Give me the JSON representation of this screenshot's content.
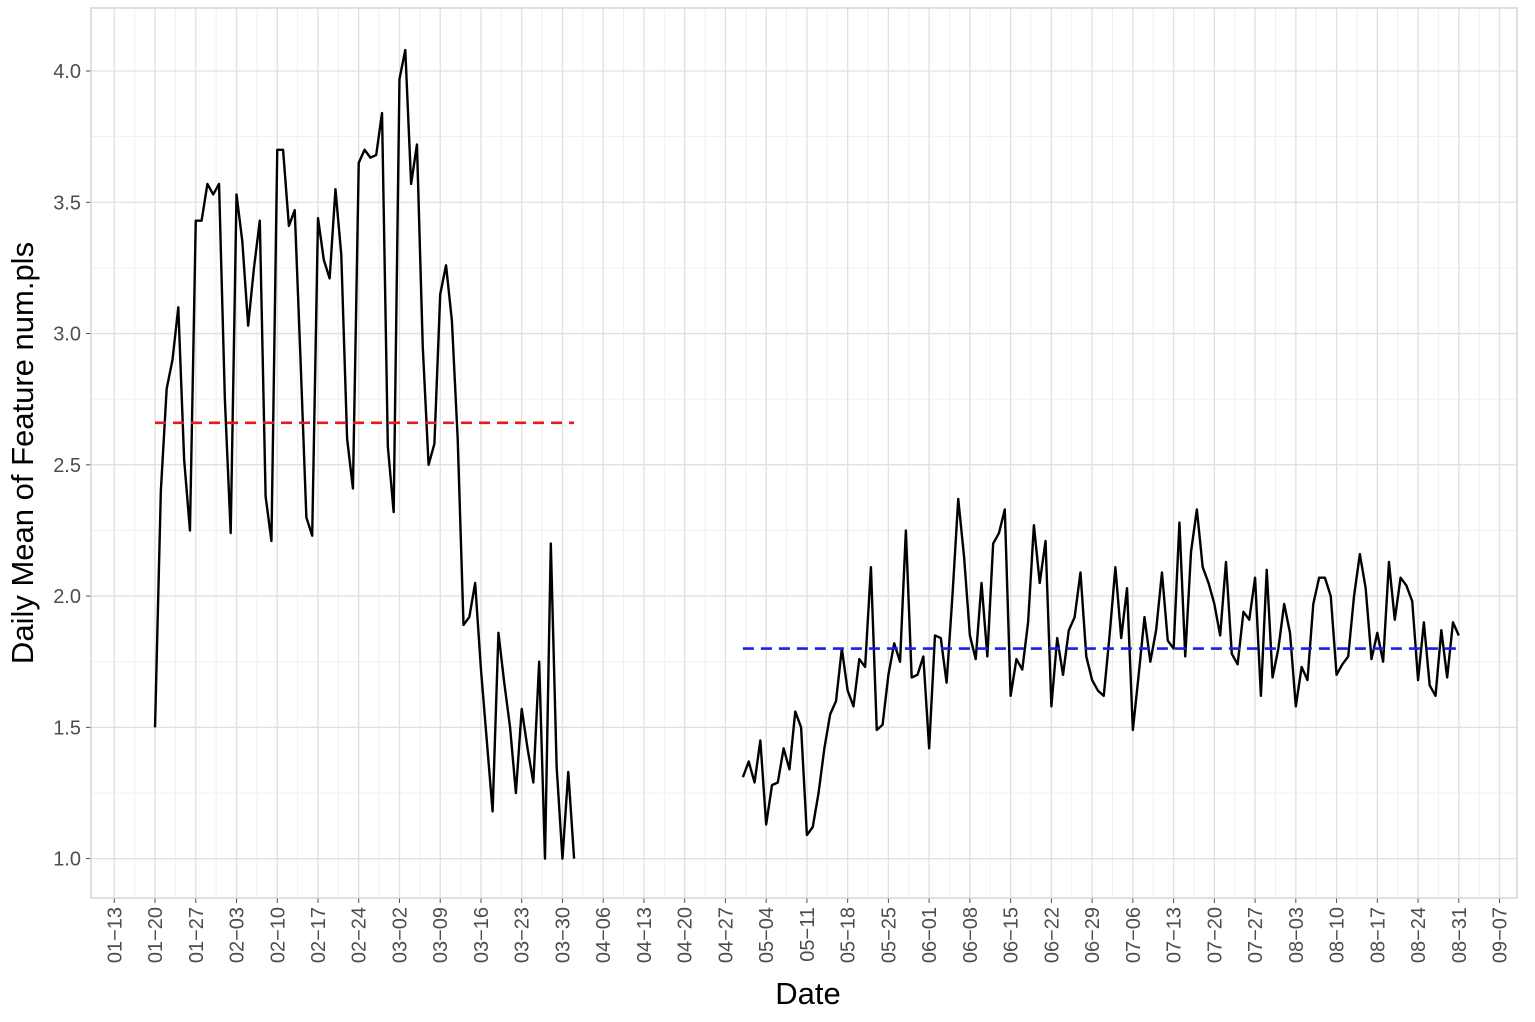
{
  "chart_data": {
    "type": "line",
    "xlabel": "Date",
    "ylabel": "Daily Mean of Feature num.pls",
    "xlim": [
      "01-09",
      "09-10"
    ],
    "ylim": [
      0.85,
      4.24
    ],
    "grid": true,
    "yticks": [
      {
        "value": 1,
        "label": "1.0"
      },
      1.5,
      {
        "value": 2,
        "label": "2.0"
      },
      2.5,
      {
        "value": 3,
        "label": "3.0"
      },
      3.5,
      {
        "value": 4,
        "label": "4.0"
      }
    ],
    "xticks": [
      {
        "value": "01-13",
        "label": "01−13"
      },
      {
        "value": "01-20",
        "label": "01−20"
      },
      {
        "value": "01-27",
        "label": "01−27"
      },
      {
        "value": "02-03",
        "label": "02−03"
      },
      {
        "value": "02-10",
        "label": "02−10"
      },
      {
        "value": "02-17",
        "label": "02−17"
      },
      {
        "value": "02-24",
        "label": "02−24"
      },
      {
        "value": "03-02",
        "label": "03−02"
      },
      {
        "value": "03-09",
        "label": "03−09"
      },
      {
        "value": "03-16",
        "label": "03−16"
      },
      {
        "value": "03-23",
        "label": "03−23"
      },
      {
        "value": "03-30",
        "label": "03−30"
      },
      {
        "value": "04-06",
        "label": "04−06"
      },
      {
        "value": "04-13",
        "label": "04−13"
      },
      {
        "value": "04-20",
        "label": "04−20"
      },
      {
        "value": "04-27",
        "label": "04−27"
      },
      {
        "value": "05-04",
        "label": "05−04"
      },
      {
        "value": "05-11",
        "label": "05−11"
      },
      {
        "value": "05-18",
        "label": "05−18"
      },
      {
        "value": "05-25",
        "label": "05−25"
      },
      {
        "value": "06-01",
        "label": "06−01"
      },
      {
        "value": "06-08",
        "label": "06−08"
      },
      {
        "value": "06-15",
        "label": "06−15"
      },
      {
        "value": "06-22",
        "label": "06−22"
      },
      {
        "value": "06-29",
        "label": "06−29"
      },
      {
        "value": "07-06",
        "label": "07−06"
      },
      {
        "value": "07-13",
        "label": "07−13"
      },
      {
        "value": "07-20",
        "label": "07−20"
      },
      {
        "value": "07-27",
        "label": "07−27"
      },
      {
        "value": "08-03",
        "label": "08−03"
      },
      {
        "value": "08-10",
        "label": "08−10"
      },
      {
        "value": "08-17",
        "label": "08−17"
      },
      {
        "value": "08-24",
        "label": "08−24"
      },
      {
        "value": "08-31",
        "label": "08−31"
      },
      {
        "value": "09-07",
        "label": "09−07"
      }
    ],
    "x": [
      "01-20",
      "01-21",
      "01-22",
      "01-23",
      "01-24",
      "01-25",
      "01-26",
      "01-27",
      "01-28",
      "01-29",
      "01-30",
      "01-31",
      "02-01",
      "02-02",
      "02-03",
      "02-04",
      "02-05",
      "02-06",
      "02-07",
      "02-08",
      "02-09",
      "02-10",
      "02-11",
      "02-12",
      "02-13",
      "02-14",
      "02-15",
      "02-16",
      "02-17",
      "02-18",
      "02-19",
      "02-20",
      "02-21",
      "02-22",
      "02-23",
      "02-24",
      "02-25",
      "02-26",
      "02-27",
      "02-28",
      "02-29",
      "03-01",
      "03-02",
      "03-03",
      "03-04",
      "03-05",
      "03-06",
      "03-07",
      "03-08",
      "03-09",
      "03-10",
      "03-11",
      "03-12",
      "03-13",
      "03-14",
      "03-15",
      "03-16",
      "03-17",
      "03-18",
      "03-19",
      "03-20",
      "03-21",
      "03-22",
      "03-23",
      "03-24",
      "03-25",
      "03-26",
      "03-27",
      "03-28",
      "03-29",
      "03-30",
      "03-31",
      "04-01",
      "04-02",
      "04-03",
      "04-04",
      "04-05",
      "04-06",
      "04-07",
      "04-08",
      "04-09",
      "04-10",
      "04-11",
      "04-12",
      "04-13",
      "04-14",
      "04-15",
      "04-16",
      "04-17",
      "04-18",
      "04-19",
      "04-20",
      "04-21",
      "04-22",
      "04-23",
      "04-24",
      "04-25",
      "04-26",
      "04-27",
      "04-28",
      "04-29",
      "04-30",
      "05-01",
      "05-02",
      "05-03",
      "05-04",
      "05-05",
      "05-06",
      "05-07",
      "05-08",
      "05-09",
      "05-10",
      "05-11",
      "05-12",
      "05-13",
      "05-14",
      "05-15",
      "05-16",
      "05-17",
      "05-18",
      "05-19",
      "05-20",
      "05-21",
      "05-22",
      "05-23",
      "05-24",
      "05-25",
      "05-26",
      "05-27",
      "05-28",
      "05-29",
      "05-30",
      "05-31",
      "06-01",
      "06-02",
      "06-03",
      "06-04",
      "06-05",
      "06-06",
      "06-07",
      "06-08",
      "06-09",
      "06-10",
      "06-11",
      "06-12",
      "06-13",
      "06-14",
      "06-15",
      "06-16",
      "06-17",
      "06-18",
      "06-19",
      "06-20",
      "06-21",
      "06-22",
      "06-23",
      "06-24",
      "06-25",
      "06-26",
      "06-27",
      "06-28",
      "06-29",
      "06-30",
      "07-01",
      "07-02",
      "07-03",
      "07-04",
      "07-05",
      "07-06",
      "07-07",
      "07-08",
      "07-09",
      "07-10",
      "07-11",
      "07-12",
      "07-13",
      "07-14",
      "07-15",
      "07-16",
      "07-17",
      "07-18",
      "07-19",
      "07-20",
      "07-21",
      "07-22",
      "07-23",
      "07-24",
      "07-25",
      "07-26",
      "07-27",
      "07-28",
      "07-29",
      "07-30",
      "07-31",
      "08-01",
      "08-02",
      "08-03",
      "08-04",
      "08-05",
      "08-06",
      "08-07",
      "08-08",
      "08-09",
      "08-10",
      "08-11",
      "08-12",
      "08-13",
      "08-14",
      "08-15",
      "08-16",
      "08-17",
      "08-18",
      "08-19",
      "08-20",
      "08-21",
      "08-22",
      "08-23",
      "08-24",
      "08-25",
      "08-26",
      "08-27",
      "08-28",
      "08-29",
      "08-30",
      "08-31"
    ],
    "series": [
      {
        "color": "#000000",
        "values": [
          1.5,
          2.4,
          2.79,
          2.9,
          3.1,
          2.52,
          2.25,
          3.43,
          3.43,
          3.57,
          3.53,
          3.57,
          2.75,
          2.24,
          3.53,
          3.35,
          3.03,
          3.25,
          3.43,
          2.38,
          2.21,
          3.7,
          3.7,
          3.41,
          3.47,
          2.9,
          2.3,
          2.23,
          3.44,
          3.28,
          3.21,
          3.55,
          3.3,
          2.6,
          2.41,
          3.65,
          3.7,
          3.67,
          3.68,
          3.84,
          2.57,
          2.32,
          3.97,
          4.08,
          3.57,
          3.72,
          2.95,
          2.5,
          2.58,
          3.15,
          3.26,
          3.05,
          2.6,
          1.89,
          1.92,
          2.05,
          1.72,
          1.45,
          1.18,
          1.86,
          1.67,
          1.5,
          1.25,
          1.57,
          1.42,
          1.29,
          1.75,
          1.0,
          2.2,
          1.35,
          1.0,
          1.33,
          1.0,
          null,
          null,
          null,
          null,
          null,
          null,
          null,
          null,
          null,
          null,
          null,
          null,
          null,
          null,
          null,
          null,
          null,
          null,
          null,
          null,
          null,
          null,
          null,
          null,
          null,
          null,
          null,
          null,
          1.31,
          1.37,
          1.29,
          1.45,
          1.13,
          1.28,
          1.29,
          1.42,
          1.34,
          1.56,
          1.5,
          1.09,
          1.12,
          1.25,
          1.42,
          1.55,
          1.6,
          1.8,
          1.64,
          1.58,
          1.76,
          1.73,
          2.11,
          1.49,
          1.51,
          1.7,
          1.82,
          1.75,
          2.25,
          1.69,
          1.7,
          1.77,
          1.42,
          1.85,
          1.84,
          1.67,
          2.0,
          2.37,
          2.15,
          1.85,
          1.76,
          2.05,
          1.77,
          2.2,
          2.24,
          2.33,
          1.62,
          1.76,
          1.72,
          1.9,
          2.27,
          2.05,
          2.21,
          1.58,
          1.84,
          1.7,
          1.87,
          1.92,
          2.09,
          1.77,
          1.68,
          1.64,
          1.62,
          1.85,
          2.11,
          1.84,
          2.03,
          1.49,
          1.7,
          1.92,
          1.75,
          1.87,
          2.09,
          1.83,
          1.8,
          2.28,
          1.77,
          2.17,
          2.33,
          2.11,
          2.05,
          1.97,
          1.85,
          2.13,
          1.78,
          1.74,
          1.94,
          1.91,
          2.07,
          1.62,
          2.1,
          1.69,
          1.8,
          1.97,
          1.86,
          1.58,
          1.73,
          1.68,
          1.97,
          2.07,
          2.07,
          2.0,
          1.7,
          1.74,
          1.77,
          2.0,
          2.16,
          2.03,
          1.76,
          1.86,
          1.75,
          2.13,
          1.91,
          2.07,
          2.04,
          1.98,
          1.68,
          1.9,
          1.66,
          1.62,
          1.87,
          1.69,
          1.9,
          1.85
        ]
      }
    ],
    "reference_lines": [
      {
        "value": 2.66,
        "color": "#e41a1c",
        "x": [
          "01-20",
          "04-01"
        ]
      },
      {
        "value": 1.8,
        "color": "#1f1fe0",
        "x": [
          "04-30",
          "08-31"
        ]
      }
    ]
  }
}
